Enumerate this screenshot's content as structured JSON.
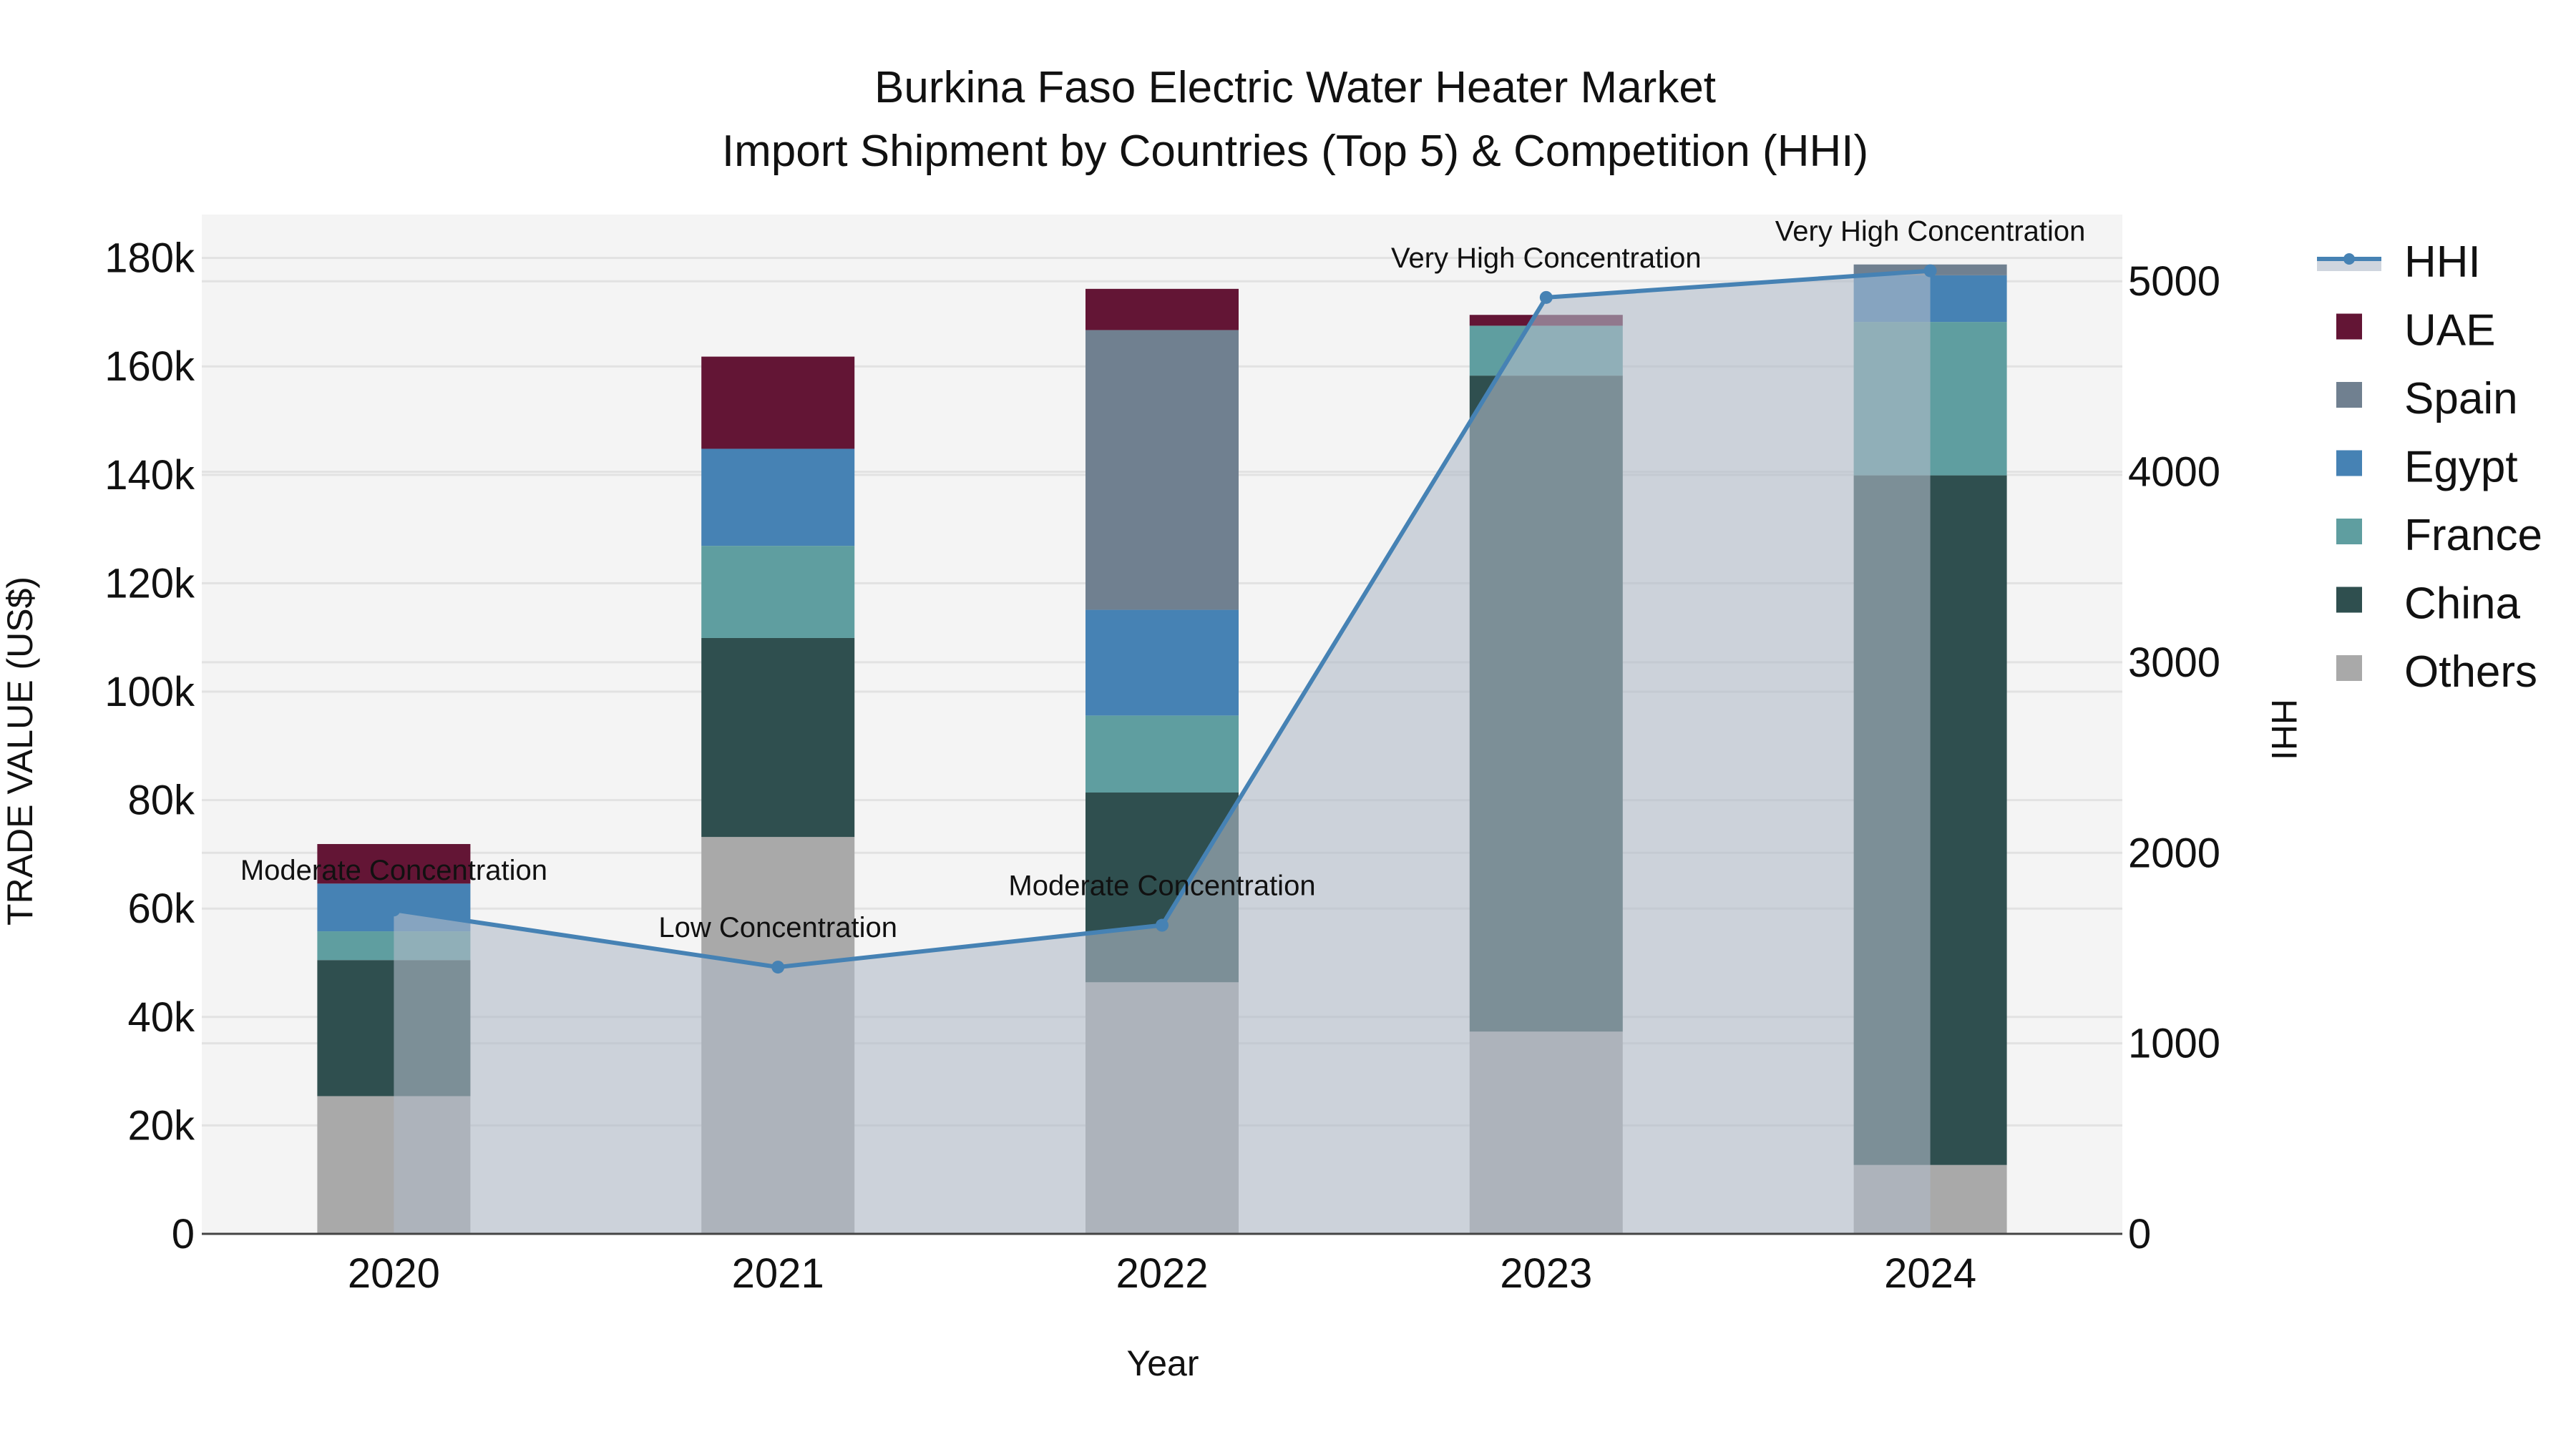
{
  "title": {
    "line1": "Burkina Faso Electric Water Heater Market",
    "line2": "Import Shipment by Countries (Top 5) & Competition (HHI)"
  },
  "axes": {
    "x_label": "Year",
    "y_left_label": "TRADE VALUE (US$)",
    "y_right_label": "HHI",
    "y_left_ticks": [
      "0",
      "20k",
      "40k",
      "60k",
      "80k",
      "100k",
      "120k",
      "140k",
      "160k",
      "180k"
    ],
    "y_right_ticks": [
      "0",
      "1000",
      "2000",
      "3000",
      "4000",
      "5000"
    ]
  },
  "legend": [
    {
      "name": "HHI",
      "type": "line",
      "color": "#4682B4"
    },
    {
      "name": "UAE",
      "type": "bar",
      "color": "#631535"
    },
    {
      "name": "Spain",
      "type": "bar",
      "color": "#708090"
    },
    {
      "name": "Egypt",
      "type": "bar",
      "color": "#4682B4"
    },
    {
      "name": "France",
      "type": "bar",
      "color": "#5F9EA0"
    },
    {
      "name": "China",
      "type": "bar",
      "color": "#2F4F4F"
    },
    {
      "name": "Others",
      "type": "bar",
      "color": "#A9A9A9"
    }
  ],
  "chart_data": {
    "type": "bar",
    "subtype": "stacked bar with line overlay (secondary axis, area fill)",
    "title": "Burkina Faso Electric Water Heater Market\nImport Shipment by Countries (Top 5) & Competition (HHI)",
    "xlabel": "Year",
    "ylabel": "TRADE VALUE (US$)",
    "y2label": "HHI",
    "categories": [
      "2020",
      "2021",
      "2022",
      "2023",
      "2024"
    ],
    "ylim": [
      0,
      188000
    ],
    "y2lim": [
      0,
      5350
    ],
    "grid": true,
    "legend_position": "right",
    "series": [
      {
        "name": "Others",
        "color": "#A9A9A9",
        "values": [
          25400,
          73200,
          46400,
          37300,
          12700
        ]
      },
      {
        "name": "China",
        "color": "#2F4F4F",
        "values": [
          25100,
          36700,
          35000,
          121000,
          127200
        ]
      },
      {
        "name": "France",
        "color": "#5F9EA0",
        "values": [
          5300,
          17000,
          14200,
          9200,
          28300
        ]
      },
      {
        "name": "Egypt",
        "color": "#4682B4",
        "values": [
          8800,
          17900,
          19500,
          0,
          8600
        ]
      },
      {
        "name": "Spain",
        "color": "#708090",
        "values": [
          0,
          0,
          51600,
          0,
          2000
        ]
      },
      {
        "name": "UAE",
        "color": "#631535",
        "values": [
          7300,
          17000,
          7600,
          2000,
          0
        ]
      }
    ],
    "line_series": {
      "name": "HHI",
      "axis": "right",
      "color": "#4682B4",
      "values": [
        1700,
        1400,
        1620,
        4915,
        5055
      ],
      "annotations": [
        "Moderate Concentration",
        "Low Concentration",
        "Moderate Concentration",
        "Very High Concentration",
        "Very High Concentration"
      ]
    }
  }
}
